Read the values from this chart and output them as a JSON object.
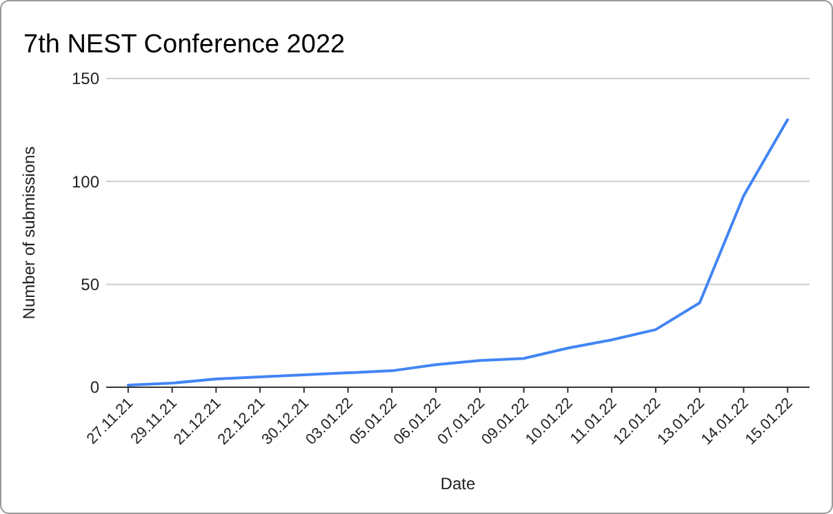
{
  "chart_data": {
    "type": "line",
    "title": "7th NEST Conference 2022",
    "xlabel": "Date",
    "ylabel": "Number of submissions",
    "categories": [
      "27.11.21",
      "29.11.21",
      "21.12.21",
      "22.12.21",
      "30.12.21",
      "03.01.22",
      "05.01.22",
      "06.01.22",
      "07.01.22",
      "09.01.22",
      "10.01.22",
      "11.01.22",
      "12.01.22",
      "13.01.22",
      "14.01.22",
      "15.01.22"
    ],
    "series": [
      {
        "color": "#4285f4",
        "values": [
          1,
          2,
          4,
          5,
          6,
          7,
          8,
          11,
          13,
          14,
          19,
          23,
          28,
          41,
          93,
          130
        ]
      }
    ],
    "ylim": [
      0,
      150
    ],
    "yticks": [
      0,
      50,
      100,
      150
    ],
    "grid": "y",
    "marker": "none",
    "line_style": "solid"
  }
}
